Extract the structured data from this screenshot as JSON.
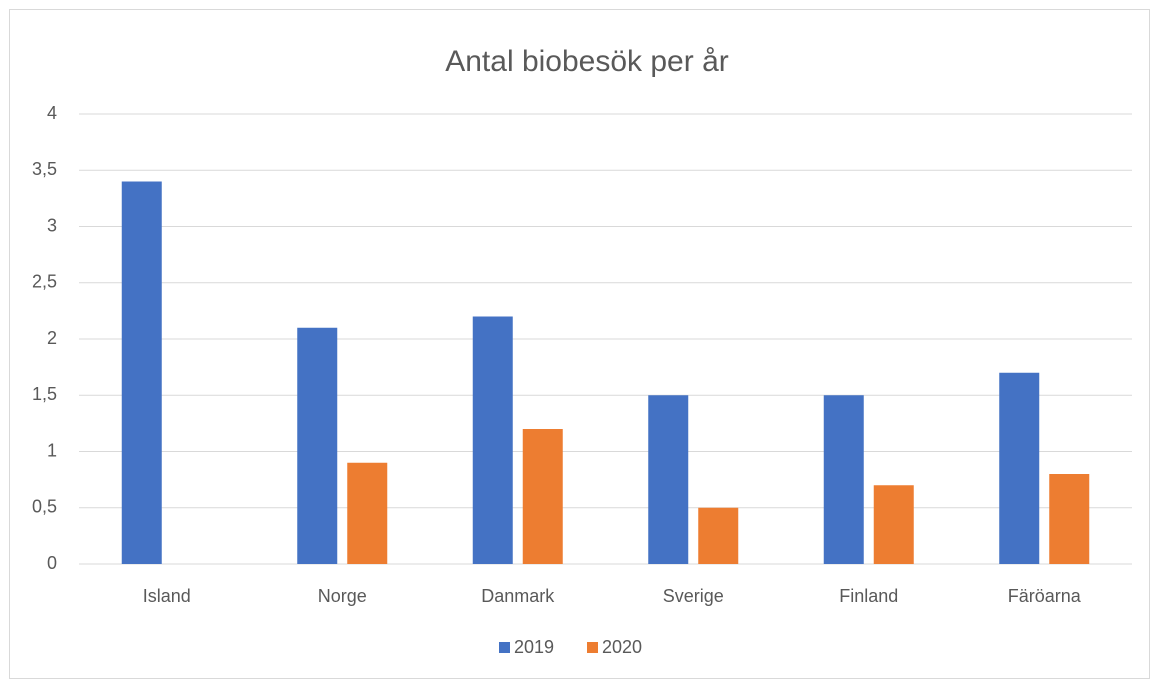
{
  "chart_data": {
    "type": "bar",
    "title": "Antal biobesök per år",
    "categories": [
      "Island",
      "Norge",
      "Danmark",
      "Sverige",
      "Finland",
      "Färöarna"
    ],
    "series": [
      {
        "name": "2019",
        "color": "#4472c4",
        "values": [
          3.4,
          2.1,
          2.2,
          1.5,
          1.5,
          1.7
        ]
      },
      {
        "name": "2020",
        "color": "#ed7d31",
        "values": [
          null,
          0.9,
          1.2,
          0.5,
          0.7,
          0.8
        ]
      }
    ],
    "ylim": [
      0,
      4
    ],
    "yticks": [
      0,
      {
        "value": 0.5,
        "label": "0,5"
      },
      1,
      {
        "value": 1.5,
        "label": "1,5"
      },
      2,
      {
        "value": 2.5,
        "label": "2,5"
      },
      3,
      {
        "value": 3.5,
        "label": "3,5"
      },
      4
    ],
    "grid": true,
    "legend": "bottom"
  }
}
